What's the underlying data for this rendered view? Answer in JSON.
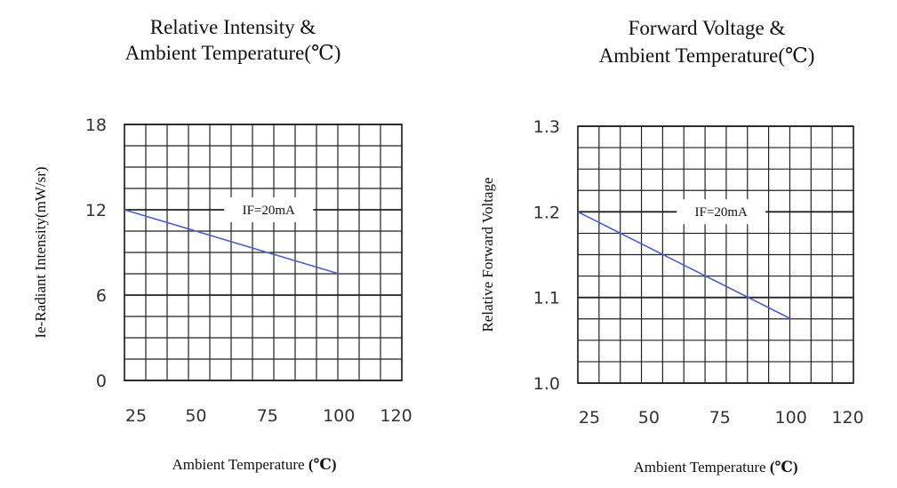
{
  "chart_data": [
    {
      "type": "line",
      "title_lines": [
        "Relative Intensity &",
        "Ambient Temperature(℃)"
      ],
      "xlabel": "Ambient Temperature",
      "xlabel_unit": "(℃)",
      "ylabel": "Ie-Radiant Intensity(mW/sr)",
      "x_ticks": [
        "25",
        "50",
        "75",
        "100",
        "120"
      ],
      "x_tick_values": [
        25,
        50,
        75,
        100,
        120
      ],
      "y_ticks": [
        "0",
        "6",
        "12",
        "18"
      ],
      "y_tick_values": [
        0,
        6,
        12,
        18
      ],
      "xlim": [
        25,
        122
      ],
      "ylim": [
        0,
        18
      ],
      "grid": true,
      "x_divisions": 13,
      "y_divisions": 12,
      "annotation": "IF=20mA",
      "line_color": "#4a5fc1",
      "series": [
        {
          "x": [
            25,
            100
          ],
          "y": [
            12,
            7.5
          ]
        }
      ]
    },
    {
      "type": "line",
      "title_lines": [
        "Forward Voltage &",
        "Ambient Temperature(℃)"
      ],
      "xlabel": "Ambient Temperature",
      "xlabel_unit": "(℃)",
      "ylabel": "Relative Forward Voltage",
      "x_ticks": [
        "25",
        "50",
        "75",
        "100",
        "120"
      ],
      "x_tick_values": [
        25,
        50,
        75,
        100,
        120
      ],
      "y_ticks": [
        "1.0",
        "1.1",
        "1.2",
        "1.3"
      ],
      "y_tick_values": [
        1.0,
        1.1,
        1.2,
        1.3
      ],
      "xlim": [
        25,
        122
      ],
      "ylim": [
        1.0,
        1.3
      ],
      "grid": true,
      "x_divisions": 13,
      "y_divisions": 12,
      "annotation": "IF=20mA",
      "line_color": "#4a5fc1",
      "series": [
        {
          "x": [
            25,
            100
          ],
          "y": [
            1.2,
            1.075
          ]
        }
      ]
    }
  ]
}
